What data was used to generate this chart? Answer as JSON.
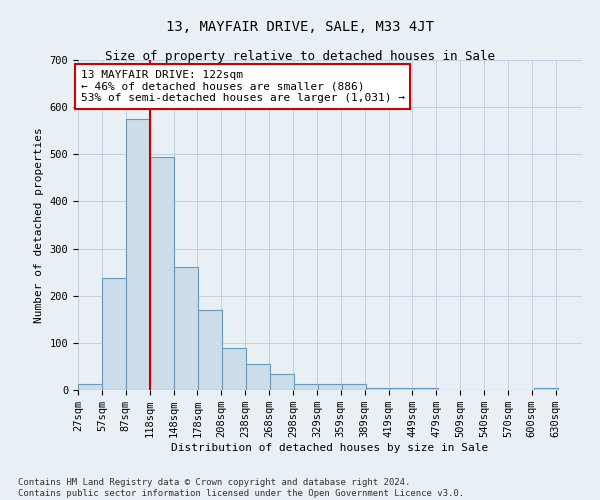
{
  "title": "13, MAYFAIR DRIVE, SALE, M33 4JT",
  "subtitle": "Size of property relative to detached houses in Sale",
  "xlabel": "Distribution of detached houses by size in Sale",
  "ylabel": "Number of detached properties",
  "annotation_line1": "13 MAYFAIR DRIVE: 122sqm",
  "annotation_line2": "← 46% of detached houses are smaller (886)",
  "annotation_line3": "53% of semi-detached houses are larger (1,031) →",
  "bar_left_edges": [
    27,
    57,
    87,
    118,
    148,
    178,
    208,
    238,
    268,
    298,
    329,
    359,
    389,
    419,
    449,
    479,
    509,
    540,
    570,
    600
  ],
  "bar_heights": [
    13,
    238,
    575,
    495,
    260,
    170,
    90,
    55,
    35,
    12,
    12,
    12,
    4,
    4,
    4,
    0,
    0,
    0,
    0,
    4
  ],
  "bin_width": 30,
  "bar_facecolor": "#ccdce8",
  "bar_edgecolor": "#6699bb",
  "vline_color": "#cc0000",
  "vline_x": 118,
  "annotation_box_edgecolor": "#cc0000",
  "annotation_box_facecolor": "#ffffff",
  "grid_color": "#bbccdd",
  "background_color": "#e8eff5",
  "ylim": [
    0,
    700
  ],
  "yticks": [
    0,
    100,
    200,
    300,
    400,
    500,
    600,
    700
  ],
  "xlim_left": 27,
  "xlim_right": 660,
  "tick_labels": [
    "27sqm",
    "57sqm",
    "87sqm",
    "118sqm",
    "148sqm",
    "178sqm",
    "208sqm",
    "238sqm",
    "268sqm",
    "298sqm",
    "329sqm",
    "359sqm",
    "389sqm",
    "419sqm",
    "449sqm",
    "479sqm",
    "509sqm",
    "540sqm",
    "570sqm",
    "600sqm",
    "630sqm"
  ],
  "footer": "Contains HM Land Registry data © Crown copyright and database right 2024.\nContains public sector information licensed under the Open Government Licence v3.0.",
  "title_fontsize": 10,
  "subtitle_fontsize": 9,
  "axis_label_fontsize": 8,
  "tick_fontsize": 7.5,
  "annotation_fontsize": 8,
  "footer_fontsize": 6.5
}
